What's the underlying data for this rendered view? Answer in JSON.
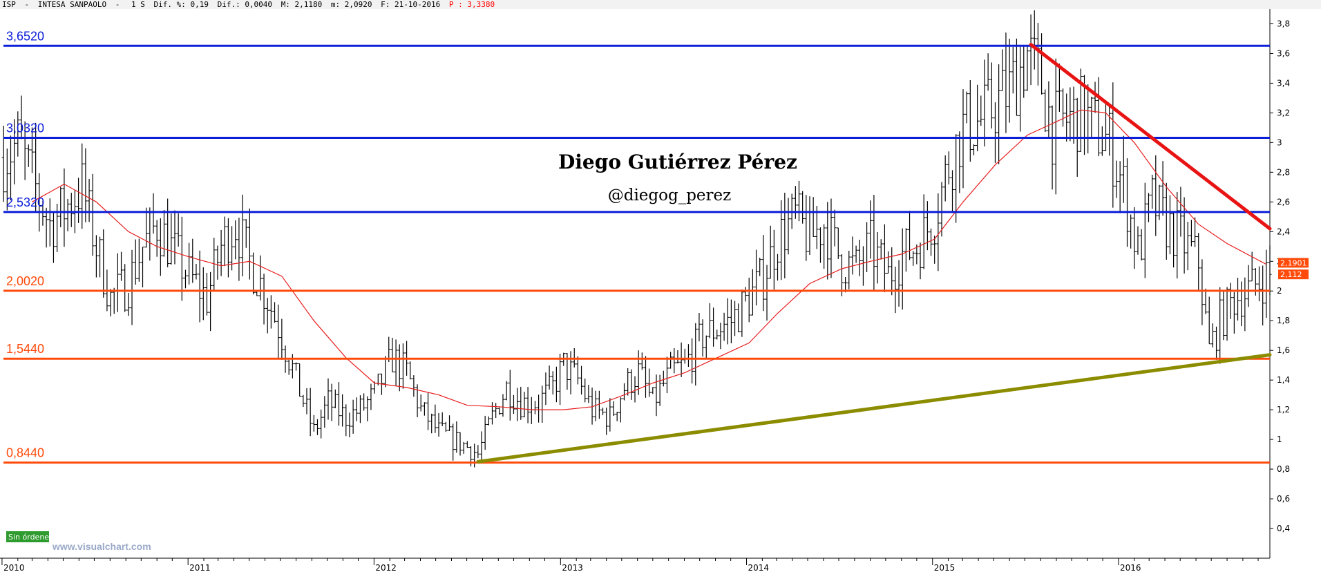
{
  "header": {
    "symbol": "ISP",
    "name": "INTESA SANPAOLO",
    "period": "1 S",
    "dif_pct_label": "Dif. %: 0,19",
    "dif_label": "Dif.: 0,0040",
    "max_label": "M: 2,1180",
    "min_label": "m: 2,0920",
    "date_label": "F: 21-10-2016",
    "price_label": "P : 3,3380"
  },
  "author": "Diego Gutiérrez Pérez",
  "handle": "@diegog_perez",
  "watermark": "www.visualchart.com",
  "status_badge": "Sin órdenes",
  "colors": {
    "resistance": "#0b1ed8",
    "support": "#ff4a0a",
    "trend_down": "#e81414",
    "trend_up": "#8c8c00",
    "sma": "#e81c1c",
    "bars": "#000000",
    "price_box": "#ff4a0a"
  },
  "chart_data": {
    "type": "ohlc-bar",
    "x_range": [
      "2009-12-28",
      "2016-10-24"
    ],
    "ylim": [
      0.2,
      3.9
    ],
    "y_ticks": [
      0.4,
      0.6,
      0.8,
      1,
      1.2,
      1.4,
      1.6,
      1.8,
      2,
      2.2,
      2.4,
      2.6,
      2.8,
      3,
      3.2,
      3.4,
      3.6,
      3.8
    ],
    "y_tick_labels": [
      "0,4",
      "0,6",
      "0,8",
      "1",
      "1,2",
      "1,4",
      "1,6",
      "1,8",
      "2",
      "2,2",
      "2,4",
      "2,6",
      "2,8",
      "3",
      "3,2",
      "3,4",
      "3,6",
      "3,8"
    ],
    "x_ticks": [
      {
        "date": "2010-01-01",
        "label": "2010"
      },
      {
        "date": "2011-01-01",
        "label": "2011"
      },
      {
        "date": "2012-01-01",
        "label": "2012"
      },
      {
        "date": "2013-01-01",
        "label": "2013"
      },
      {
        "date": "2014-01-01",
        "label": "2014"
      },
      {
        "date": "2015-01-01",
        "label": "2015"
      },
      {
        "date": "2016-01-01",
        "label": "2016"
      }
    ],
    "price_path": [
      [
        "2010-01-04",
        2.9
      ],
      [
        "2010-02-01",
        3.0
      ],
      [
        "2010-03-01",
        2.75
      ],
      [
        "2010-04-05",
        2.45
      ],
      [
        "2010-05-03",
        2.55
      ],
      [
        "2010-06-07",
        2.7
      ],
      [
        "2010-07-05",
        2.3
      ],
      [
        "2010-08-02",
        1.95
      ],
      [
        "2010-09-06",
        2.05
      ],
      [
        "2010-10-04",
        2.3
      ],
      [
        "2010-11-01",
        2.45
      ],
      [
        "2010-12-06",
        2.25
      ],
      [
        "2011-01-03",
        2.1
      ],
      [
        "2011-02-07",
        1.95
      ],
      [
        "2011-03-07",
        2.3
      ],
      [
        "2011-04-04",
        2.45
      ],
      [
        "2011-05-02",
        2.2
      ],
      [
        "2011-06-06",
        1.95
      ],
      [
        "2011-07-04",
        1.7
      ],
      [
        "2011-08-01",
        1.4
      ],
      [
        "2011-09-05",
        1.05
      ],
      [
        "2011-10-03",
        1.25
      ],
      [
        "2011-11-07",
        1.15
      ],
      [
        "2011-12-05",
        1.2
      ],
      [
        "2012-01-02",
        1.3
      ],
      [
        "2012-02-06",
        1.55
      ],
      [
        "2012-03-05",
        1.45
      ],
      [
        "2012-04-02",
        1.2
      ],
      [
        "2012-05-07",
        1.05
      ],
      [
        "2012-06-04",
        1.0
      ],
      [
        "2012-07-02",
        0.95
      ],
      [
        "2012-07-23",
        0.9
      ],
      [
        "2012-08-20",
        1.15
      ],
      [
        "2012-09-17",
        1.35
      ],
      [
        "2012-10-15",
        1.25
      ],
      [
        "2012-11-19",
        1.25
      ],
      [
        "2012-12-17",
        1.35
      ],
      [
        "2013-01-07",
        1.5
      ],
      [
        "2013-02-04",
        1.4
      ],
      [
        "2013-03-04",
        1.2
      ],
      [
        "2013-04-08",
        1.15
      ],
      [
        "2013-05-06",
        1.35
      ],
      [
        "2013-06-03",
        1.45
      ],
      [
        "2013-07-01",
        1.25
      ],
      [
        "2013-08-05",
        1.45
      ],
      [
        "2013-09-02",
        1.5
      ],
      [
        "2013-10-07",
        1.7
      ],
      [
        "2013-11-04",
        1.75
      ],
      [
        "2013-12-02",
        1.8
      ],
      [
        "2014-01-06",
        1.95
      ],
      [
        "2014-02-03",
        2.1
      ],
      [
        "2014-03-03",
        2.35
      ],
      [
        "2014-04-07",
        2.5
      ],
      [
        "2014-05-05",
        2.35
      ],
      [
        "2014-06-02",
        2.45
      ],
      [
        "2014-07-07",
        2.2
      ],
      [
        "2014-08-04",
        2.15
      ],
      [
        "2014-09-01",
        2.3
      ],
      [
        "2014-10-06",
        2.1
      ],
      [
        "2014-11-03",
        2.25
      ],
      [
        "2014-12-01",
        2.3
      ],
      [
        "2015-01-05",
        2.5
      ],
      [
        "2015-02-02",
        2.85
      ],
      [
        "2015-03-02",
        3.1
      ],
      [
        "2015-04-06",
        3.15
      ],
      [
        "2015-05-04",
        3.25
      ],
      [
        "2015-06-01",
        3.35
      ],
      [
        "2015-07-06",
        3.6
      ],
      [
        "2015-08-03",
        3.4
      ],
      [
        "2015-08-24",
        3.1
      ],
      [
        "2015-09-21",
        3.15
      ],
      [
        "2015-10-19",
        3.2
      ],
      [
        "2015-11-16",
        3.1
      ],
      [
        "2015-12-14",
        3.0
      ],
      [
        "2016-01-11",
        2.7
      ],
      [
        "2016-02-08",
        2.25
      ],
      [
        "2016-03-07",
        2.6
      ],
      [
        "2016-04-04",
        2.45
      ],
      [
        "2016-05-02",
        2.35
      ],
      [
        "2016-06-06",
        2.2
      ],
      [
        "2016-06-27",
        1.6
      ],
      [
        "2016-07-18",
        1.8
      ],
      [
        "2016-08-15",
        1.95
      ],
      [
        "2016-09-12",
        2.0
      ],
      [
        "2016-10-17",
        2.1
      ]
    ],
    "sma": [
      [
        "2010-03-01",
        2.6
      ],
      [
        "2010-05-03",
        2.72
      ],
      [
        "2010-07-05",
        2.6
      ],
      [
        "2010-09-06",
        2.4
      ],
      [
        "2010-11-01",
        2.3
      ],
      [
        "2011-01-03",
        2.23
      ],
      [
        "2011-03-07",
        2.17
      ],
      [
        "2011-05-02",
        2.2
      ],
      [
        "2011-07-04",
        2.1
      ],
      [
        "2011-09-05",
        1.8
      ],
      [
        "2011-11-07",
        1.55
      ],
      [
        "2012-01-02",
        1.38
      ],
      [
        "2012-03-05",
        1.35
      ],
      [
        "2012-05-07",
        1.3
      ],
      [
        "2012-07-02",
        1.23
      ],
      [
        "2012-09-03",
        1.22
      ],
      [
        "2012-11-05",
        1.2
      ],
      [
        "2013-01-07",
        1.2
      ],
      [
        "2013-03-04",
        1.22
      ],
      [
        "2013-05-06",
        1.3
      ],
      [
        "2013-07-01",
        1.38
      ],
      [
        "2013-09-02",
        1.45
      ],
      [
        "2013-11-04",
        1.55
      ],
      [
        "2014-01-06",
        1.65
      ],
      [
        "2014-03-03",
        1.85
      ],
      [
        "2014-05-05",
        2.05
      ],
      [
        "2014-07-07",
        2.15
      ],
      [
        "2014-09-01",
        2.2
      ],
      [
        "2014-11-03",
        2.25
      ],
      [
        "2015-01-05",
        2.35
      ],
      [
        "2015-03-02",
        2.6
      ],
      [
        "2015-05-04",
        2.85
      ],
      [
        "2015-07-06",
        3.05
      ],
      [
        "2015-09-07",
        3.15
      ],
      [
        "2015-10-19",
        3.22
      ],
      [
        "2015-12-07",
        3.2
      ],
      [
        "2016-02-01",
        3.0
      ],
      [
        "2016-04-04",
        2.7
      ],
      [
        "2016-06-06",
        2.45
      ],
      [
        "2016-08-01",
        2.32
      ],
      [
        "2016-10-17",
        2.18
      ]
    ],
    "horizontal_levels": [
      {
        "value": 3.652,
        "label": "3,6520",
        "kind": "resistance"
      },
      {
        "value": 3.032,
        "label": "3,0320",
        "kind": "resistance"
      },
      {
        "value": 2.532,
        "label": "2,5320",
        "kind": "resistance"
      },
      {
        "value": 2.002,
        "label": "2,0020",
        "kind": "support"
      },
      {
        "value": 1.544,
        "label": "1,5440",
        "kind": "support"
      },
      {
        "value": 0.844,
        "label": "0,8440",
        "kind": "support"
      }
    ],
    "trendlines": [
      {
        "kind": "trend_down",
        "from": [
          "2015-07-13",
          3.66
        ],
        "to": [
          "2016-10-24",
          2.42
        ]
      },
      {
        "kind": "trend_up",
        "from": [
          "2012-07-23",
          0.85
        ],
        "to": [
          "2016-10-24",
          1.57
        ]
      }
    ],
    "price_boxes": [
      {
        "value": 2.19,
        "label": "2,1901"
      },
      {
        "value": 2.112,
        "label": "2,112"
      }
    ]
  }
}
